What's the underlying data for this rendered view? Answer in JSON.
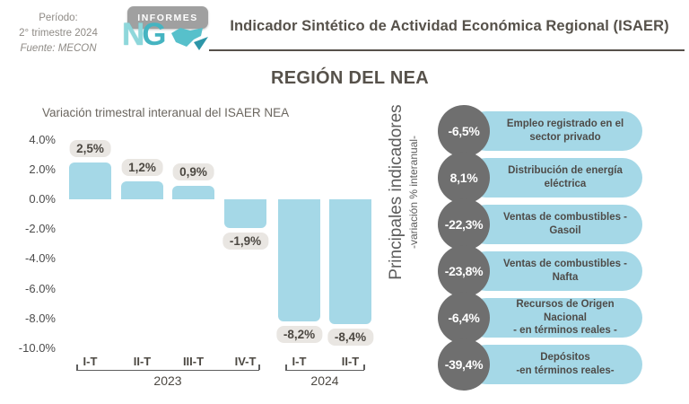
{
  "header": {
    "period_line1": "Período:",
    "period_line2": "2° trimestre 2024",
    "period_line3": "Fuente: MECON",
    "logo_top": "INFORMES",
    "logo_letter_n": "N",
    "logo_letter_g": "G",
    "title": "Indicador Sintético de Actividad Económica Regional (ISAER)",
    "subtitle": "REGIÓN DEL NEA",
    "accent_teal": "#45b4c1"
  },
  "chart_data": {
    "type": "bar",
    "title": "Variación trimestral interanual del ISAER NEA",
    "categories": [
      "I-T",
      "II-T",
      "III-T",
      "IV-T",
      "I-T",
      "II-T"
    ],
    "year_groups": [
      {
        "label": "2023",
        "span": [
          0,
          3
        ]
      },
      {
        "label": "2024",
        "span": [
          4,
          5
        ]
      }
    ],
    "values": [
      2.5,
      1.2,
      0.9,
      -1.9,
      -8.2,
      -8.4
    ],
    "value_labels": [
      "2,5%",
      "1,2%",
      "0,9%",
      "-1,9%",
      "-8,2%",
      "-8,4%"
    ],
    "yticks": [
      "4.0%",
      "2.0%",
      "0.0%",
      "-2.0%",
      "-4.0%",
      "-6.0%",
      "-8.0%",
      "-10.0%"
    ],
    "ytick_values": [
      4,
      2,
      0,
      -2,
      -4,
      -6,
      -8,
      -10
    ],
    "ylim": [
      -10,
      4
    ],
    "grid": false,
    "bar_color": "#a5d8e7",
    "value_label_bg": "#e9e6e2",
    "xlabel": "",
    "ylabel": ""
  },
  "indicators": {
    "title": "Principales indicadores",
    "subtitle": "-variación % interanual-",
    "circle_color": "#6f6f6f",
    "pill_color": "#a5d8e7",
    "items": [
      {
        "value": "-6,5%",
        "label": "Empleo registrado en el\nsector privado"
      },
      {
        "value": "8,1%",
        "label": "Distribución de energía\neléctrica"
      },
      {
        "value": "-22,3%",
        "label": "Ventas de combustibles -\nGasoil"
      },
      {
        "value": "-23,8%",
        "label": "Ventas de combustibles -\nNafta"
      },
      {
        "value": "-6,4%",
        "label": "Recursos de Origen Nacional\n- en términos reales -"
      },
      {
        "value": "-39,4%",
        "label": "Depósitos\n-en términos reales-"
      }
    ]
  }
}
